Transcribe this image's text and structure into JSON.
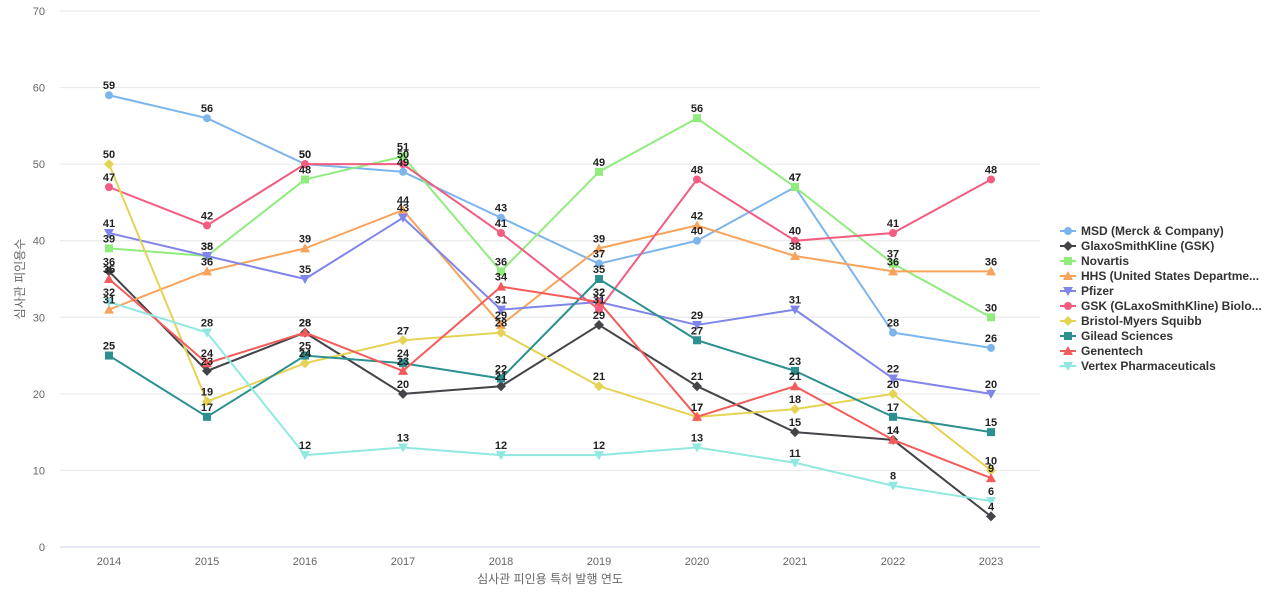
{
  "chart_data": {
    "type": "line",
    "xlabel": "심사관 피인용 특허 발행 연도",
    "ylabel": "심사관 피인용수",
    "ylim": [
      0,
      70
    ],
    "yticks": [
      0,
      10,
      20,
      30,
      40,
      50,
      60,
      70
    ],
    "categories": [
      "2014",
      "2015",
      "2016",
      "2017",
      "2018",
      "2019",
      "2020",
      "2021",
      "2022",
      "2023"
    ],
    "grid": true,
    "legend_position": "right",
    "series": [
      {
        "name": "MSD (Merck & Company)",
        "color": "#7cb5ec",
        "marker": "circle",
        "values": [
          59,
          56,
          50,
          49,
          43,
          37,
          40,
          47,
          28,
          26
        ]
      },
      {
        "name": "GlaxoSmithKline (GSK)",
        "color": "#434348",
        "marker": "diamond",
        "values": [
          36,
          23,
          28,
          20,
          21,
          29,
          21,
          15,
          14,
          4
        ]
      },
      {
        "name": "Novartis",
        "color": "#90ed7d",
        "marker": "square",
        "values": [
          39,
          38,
          48,
          51,
          36,
          49,
          56,
          47,
          37,
          30
        ]
      },
      {
        "name": "HHS (United States Departme...",
        "color": "#f7a35c",
        "marker": "triangle",
        "values": [
          31,
          36,
          39,
          44,
          29,
          39,
          42,
          38,
          36,
          36
        ]
      },
      {
        "name": "Pfizer",
        "color": "#8085e9",
        "marker": "triangle-down",
        "values": [
          41,
          38,
          35,
          43,
          31,
          32,
          29,
          31,
          22,
          20
        ]
      },
      {
        "name": "GSK (GLaxoSmithKline) Biolo...",
        "color": "#f15c80",
        "marker": "circle",
        "values": [
          47,
          42,
          50,
          50,
          41,
          31,
          48,
          40,
          41,
          48
        ]
      },
      {
        "name": "Bristol-Myers Squibb",
        "color": "#e4d354",
        "marker": "diamond",
        "values": [
          50,
          19,
          24,
          27,
          28,
          21,
          17,
          18,
          20,
          10
        ]
      },
      {
        "name": "Gilead Sciences",
        "color": "#2b908f",
        "marker": "square",
        "values": [
          25,
          17,
          25,
          24,
          22,
          35,
          27,
          23,
          17,
          15
        ]
      },
      {
        "name": "Genentech",
        "color": "#f45b5b",
        "marker": "triangle",
        "values": [
          35,
          24,
          28,
          23,
          34,
          32,
          17,
          21,
          14,
          9
        ]
      },
      {
        "name": "Vertex Pharmaceuticals",
        "color": "#91e8e1",
        "marker": "triangle-down",
        "values": [
          32,
          28,
          12,
          13,
          12,
          12,
          13,
          11,
          8,
          6
        ]
      }
    ]
  }
}
